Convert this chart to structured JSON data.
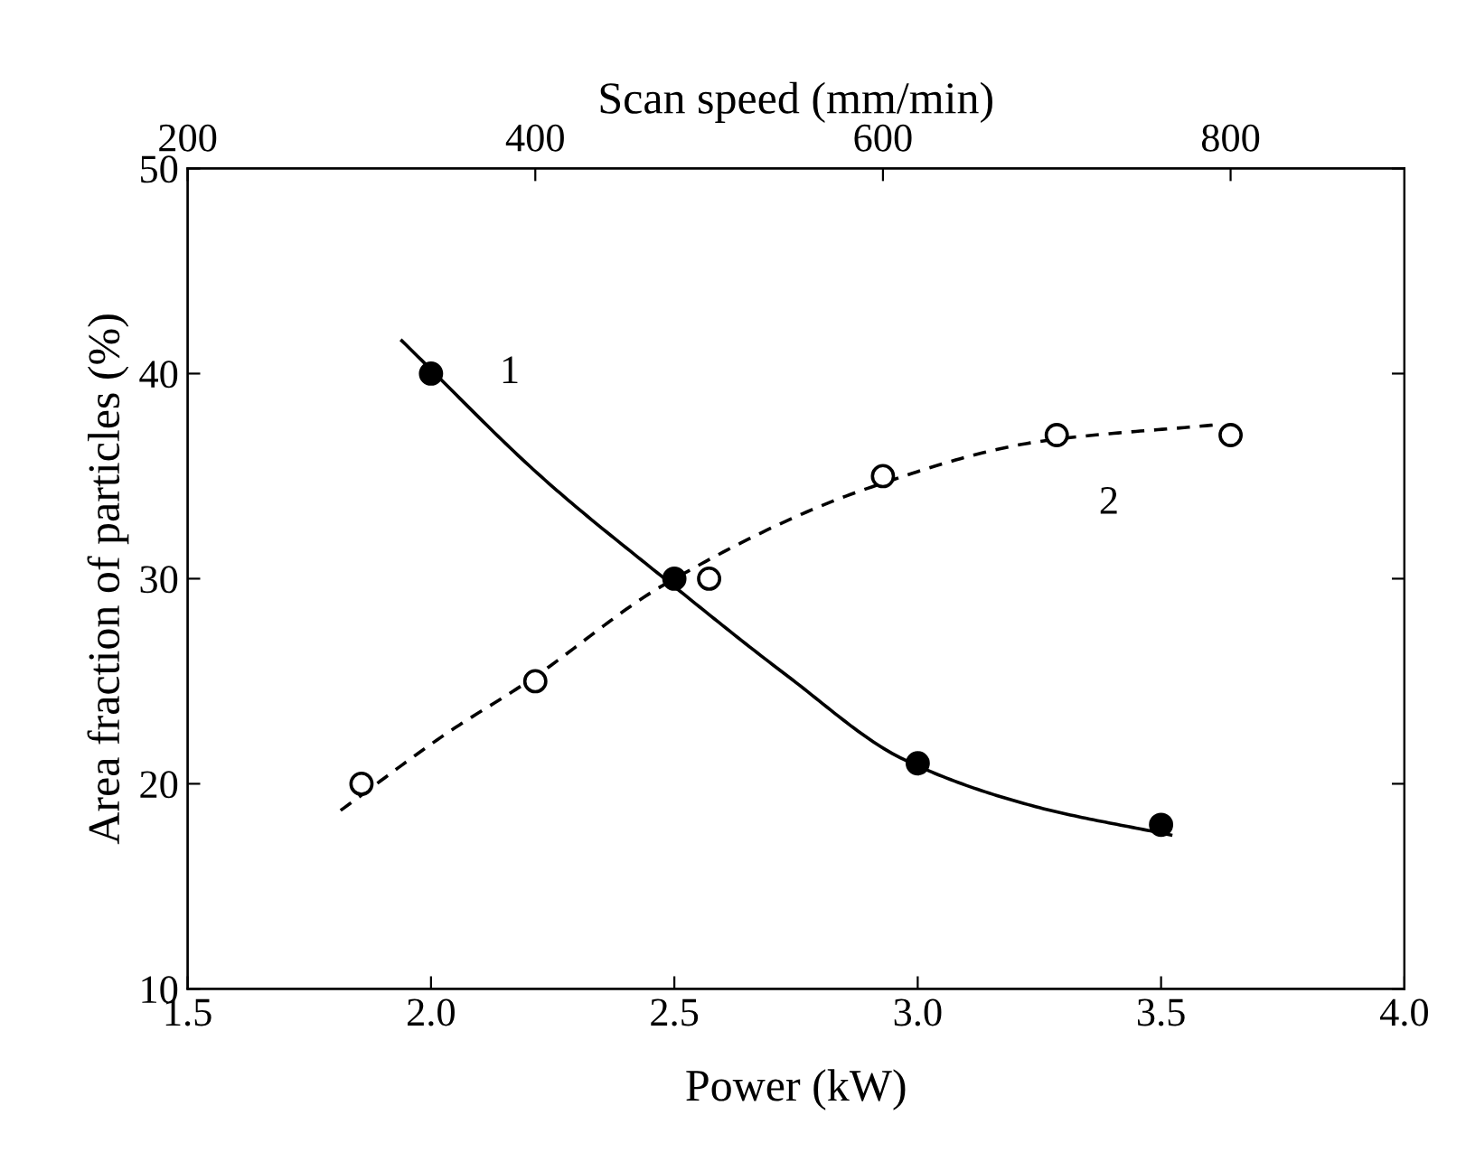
{
  "chart_data": {
    "type": "scatter",
    "xlabel": "Power (kW)",
    "x2label": "Scan speed (mm/min)",
    "ylabel": "Area fraction of particles (%)",
    "xlim": [
      1.5,
      4.0
    ],
    "xticks": [
      1.5,
      {
        "value": 2,
        "label": "2.0"
      },
      2.5,
      {
        "value": 3,
        "label": "3.0"
      },
      3.5,
      {
        "value": 4,
        "label": "4.0"
      }
    ],
    "x2lim": [
      200,
      900
    ],
    "x2ticks": [
      200,
      400,
      600,
      800
    ],
    "ylim": [
      10,
      50
    ],
    "yticks": [
      10,
      20,
      30,
      40,
      50
    ],
    "series": [
      {
        "x": [
          2.0,
          2.5,
          3.0,
          3.5
        ],
        "values": [
          40,
          30,
          21,
          18
        ],
        "color": "#000000",
        "marker": "circle"
      },
      {
        "type": "line",
        "x": [
          1.94,
          2.23,
          2.48,
          2.73,
          2.97,
          3.24,
          3.52
        ],
        "values": [
          41.6,
          34.9,
          30.0,
          25.3,
          21.2,
          18.9,
          17.5
        ],
        "color": "#000000",
        "line_style": "solid"
      },
      {
        "axis": "x2",
        "x": [
          300,
          400,
          500,
          600,
          700,
          800
        ],
        "values": [
          20,
          25,
          30,
          35,
          37,
          37
        ],
        "color": "#ffffff",
        "marker": "circle"
      },
      {
        "type": "line",
        "axis": "x2",
        "x": [
          288,
          348,
          396,
          474,
          591,
          691,
          791
        ],
        "values": [
          18.7,
          22.4,
          25.0,
          29.7,
          34.4,
          36.7,
          37.5
        ],
        "color": "#000000",
        "line_style": "dashed"
      }
    ],
    "annotations": [
      "1",
      "2"
    ]
  }
}
